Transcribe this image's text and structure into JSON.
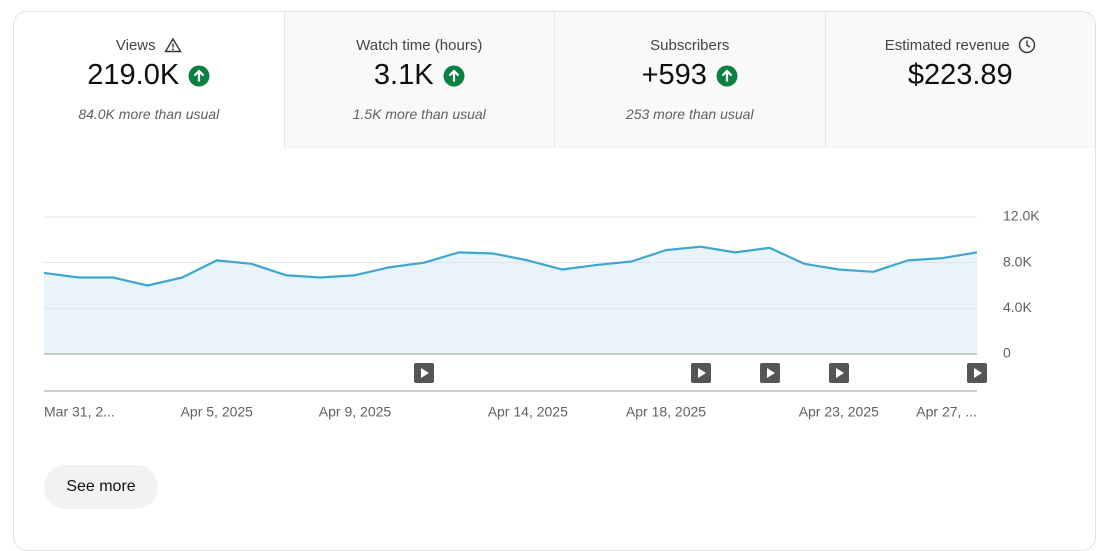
{
  "metrics": [
    {
      "label": "Views",
      "value": "219.0K",
      "comparison": "84.0K more than usual"
    },
    {
      "label": "Watch time (hours)",
      "value": "3.1K",
      "comparison": "1.5K more than usual"
    },
    {
      "label": "Subscribers",
      "value": "+593",
      "comparison": "253 more than usual"
    },
    {
      "label": "Estimated revenue",
      "value": "$223.89"
    }
  ],
  "see_more": "See more",
  "chart_data": {
    "type": "line",
    "color": "#3ea6d0",
    "area_color": "#e8f4fa",
    "grid": true,
    "categories": [
      "Mar 31, 2...",
      null,
      null,
      null,
      null,
      "Apr 5, 2025",
      null,
      null,
      null,
      "Apr 9, 2025",
      null,
      null,
      null,
      null,
      "Apr 14, 2025",
      null,
      null,
      null,
      "Apr 18, 2025",
      null,
      null,
      null,
      null,
      "Apr 23, 2025",
      null,
      null,
      null,
      "Apr 27, ..."
    ],
    "values": [
      7100,
      6700,
      6700,
      6000,
      6700,
      8200,
      7900,
      6900,
      6700,
      6900,
      7600,
      8000,
      8900,
      8800,
      8200,
      7400,
      7800,
      8100,
      9100,
      9400,
      8900,
      9300,
      7900,
      7400,
      7200,
      8200,
      8400,
      8900
    ],
    "ylim": [
      0,
      12000
    ],
    "yticks": [
      {
        "value": 0,
        "label": "0"
      },
      {
        "value": 4000,
        "label": "4.0K"
      },
      {
        "value": 8000,
        "label": "8.0K"
      },
      {
        "value": 12000,
        "label": "12.0K"
      }
    ]
  }
}
